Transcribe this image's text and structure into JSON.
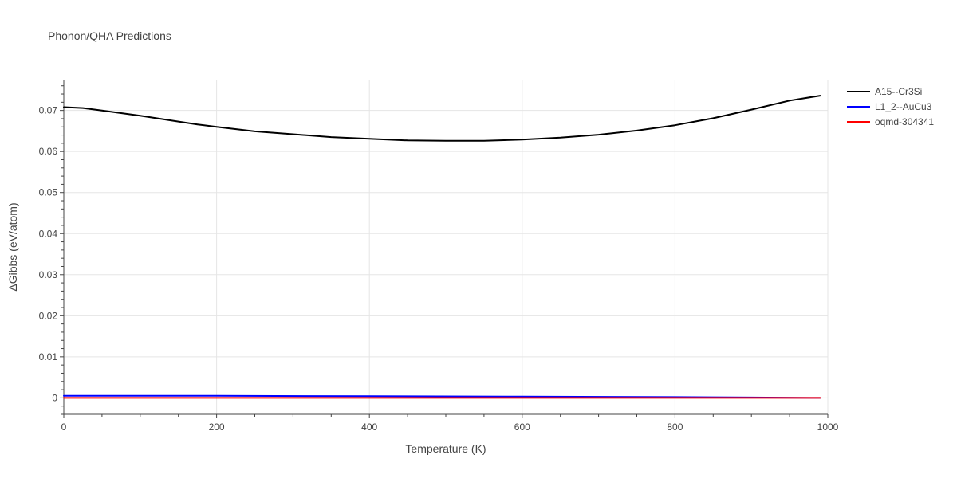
{
  "chart_data": {
    "type": "line",
    "title": "Phonon/QHA Predictions",
    "xlabel": "Temperature (K)",
    "ylabel": "ΔGibbs (eV/atom)",
    "xlim": [
      0,
      1000
    ],
    "ylim": [
      -0.004,
      0.0775
    ],
    "x_ticks": [
      0,
      200,
      400,
      600,
      800,
      1000
    ],
    "x_tick_labels": [
      "0",
      "200",
      "400",
      "600",
      "800",
      "1000"
    ],
    "y_ticks": [
      0,
      0.01,
      0.02,
      0.03,
      0.04,
      0.05,
      0.06,
      0.07
    ],
    "y_tick_labels": [
      "0",
      "0.01",
      "0.02",
      "0.03",
      "0.04",
      "0.05",
      "0.06",
      "0.07"
    ],
    "grid": true,
    "legend_position": "top-right",
    "series": [
      {
        "name": "A15--Cr3Si",
        "color": "#000000",
        "x": [
          0,
          25,
          50,
          100,
          150,
          175,
          200,
          250,
          300,
          350,
          400,
          450,
          500,
          550,
          600,
          650,
          700,
          750,
          800,
          850,
          900,
          950,
          990
        ],
        "y": [
          0.0708,
          0.0706,
          0.07,
          0.0687,
          0.0673,
          0.0666,
          0.066,
          0.0649,
          0.0642,
          0.0635,
          0.0631,
          0.0627,
          0.0626,
          0.0626,
          0.0629,
          0.0634,
          0.0641,
          0.0651,
          0.0664,
          0.0681,
          0.0702,
          0.0724,
          0.0736
        ]
      },
      {
        "name": "L1_2--AuCu3",
        "color": "#0000ff",
        "x": [
          0,
          200,
          400,
          600,
          800,
          900,
          990
        ],
        "y": [
          0.0005,
          0.0005,
          0.0004,
          0.0003,
          0.0002,
          0.0001,
          0.0
        ]
      },
      {
        "name": "oqmd-304341",
        "color": "#ff0000",
        "x": [
          0,
          200,
          400,
          600,
          800,
          900,
          990
        ],
        "y": [
          0.0,
          0.0,
          0.0,
          0.0,
          0.0,
          0.0,
          0.0
        ]
      }
    ]
  }
}
